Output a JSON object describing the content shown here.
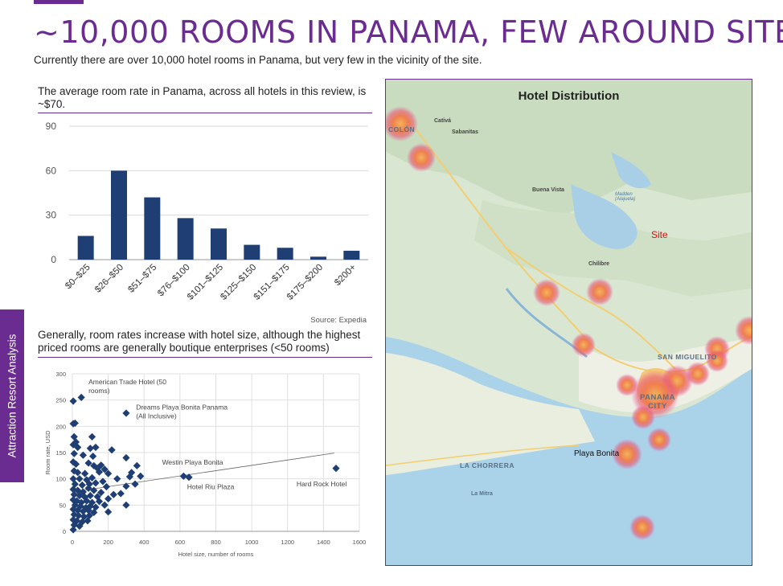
{
  "header": {
    "title": "~10,000 ROOMS IN PANAMA, FEW AROUND SITE",
    "subtitle": "Currently there are over 10,000 hotel rooms in Panama, but very few in the vicinity of the site."
  },
  "side_tab": {
    "label": "Attraction Resort Analysis"
  },
  "colors": {
    "accent": "#6a2c91",
    "bar": "#1f3f74",
    "marker": "#1f3f74",
    "site": "#e01010"
  },
  "bar_panel": {
    "heading": "The average room rate in Panama, across all hotels in this review, is ~$70.",
    "source": "Source: Expedia"
  },
  "scatter_panel": {
    "heading": "Generally, room rates increase with hotel size, although the highest priced rooms are generally boutique enterprises (<50 rooms)"
  },
  "map": {
    "title": "Hotel Distribution",
    "site_label": "Site",
    "places": {
      "colon": "COLÓN",
      "cativa": "Cativá",
      "sabanitas": "Sabanitas",
      "buena_vista": "Buena Vista",
      "madden": "Madden (Alajuela)",
      "chilibre": "Chilibre",
      "san_miguelito": "SAN MIGUELITO",
      "panama_city": "PANAMA CITY",
      "la_chorrera": "LA CHORRERA",
      "la_mitra": "La Mitra",
      "playa_bonita": "Playa Bonita"
    }
  },
  "chart_data": [
    {
      "type": "bar",
      "title": "",
      "categories": [
        "$0–$25",
        "$26–$50",
        "$51–$75",
        "$76–$100",
        "$101–$125",
        "$125–$150",
        "$151–$175",
        "$175–$200",
        "$200+"
      ],
      "values": [
        16,
        60,
        42,
        28,
        21,
        10,
        8,
        2,
        6
      ],
      "ylim": [
        0,
        90
      ],
      "yticks": [
        0,
        30,
        60,
        90
      ],
      "xlabel": "",
      "ylabel": "",
      "grid": true
    },
    {
      "type": "scatter",
      "xlabel": "Hotel size, number of rooms",
      "ylabel": "Room rate, USD",
      "xlim": [
        0,
        1600
      ],
      "ylim": [
        0,
        300
      ],
      "xticks": [
        0,
        200,
        400,
        600,
        800,
        1000,
        1200,
        1400,
        1600
      ],
      "yticks": [
        0,
        50,
        100,
        150,
        200,
        250,
        300
      ],
      "grid": true,
      "trendline": {
        "x": [
          0,
          1460
        ],
        "y": [
          75,
          149
        ]
      },
      "points": [
        {
          "x": 50,
          "y": 255
        },
        {
          "x": 5,
          "y": 248
        },
        {
          "x": 300,
          "y": 225
        },
        {
          "x": 5,
          "y": 205
        },
        {
          "x": 15,
          "y": 206
        },
        {
          "x": 10,
          "y": 180
        },
        {
          "x": 20,
          "y": 170
        },
        {
          "x": 110,
          "y": 180
        },
        {
          "x": 5,
          "y": 165
        },
        {
          "x": 30,
          "y": 160
        },
        {
          "x": 100,
          "y": 158
        },
        {
          "x": 130,
          "y": 160
        },
        {
          "x": 220,
          "y": 155
        },
        {
          "x": 10,
          "y": 148
        },
        {
          "x": 60,
          "y": 145
        },
        {
          "x": 115,
          "y": 143
        },
        {
          "x": 300,
          "y": 140
        },
        {
          "x": 5,
          "y": 132
        },
        {
          "x": 20,
          "y": 128
        },
        {
          "x": 90,
          "y": 130
        },
        {
          "x": 120,
          "y": 125
        },
        {
          "x": 160,
          "y": 126
        },
        {
          "x": 180,
          "y": 118
        },
        {
          "x": 140,
          "y": 120
        },
        {
          "x": 360,
          "y": 125
        },
        {
          "x": 10,
          "y": 115
        },
        {
          "x": 30,
          "y": 112
        },
        {
          "x": 70,
          "y": 110
        },
        {
          "x": 150,
          "y": 113
        },
        {
          "x": 200,
          "y": 110
        },
        {
          "x": 330,
          "y": 112
        },
        {
          "x": 5,
          "y": 100
        },
        {
          "x": 40,
          "y": 100
        },
        {
          "x": 80,
          "y": 98
        },
        {
          "x": 110,
          "y": 102
        },
        {
          "x": 170,
          "y": 95
        },
        {
          "x": 250,
          "y": 100
        },
        {
          "x": 320,
          "y": 104
        },
        {
          "x": 380,
          "y": 105
        },
        {
          "x": 15,
          "y": 90
        },
        {
          "x": 55,
          "y": 88
        },
        {
          "x": 95,
          "y": 90
        },
        {
          "x": 130,
          "y": 92
        },
        {
          "x": 190,
          "y": 85
        },
        {
          "x": 300,
          "y": 86
        },
        {
          "x": 350,
          "y": 90
        },
        {
          "x": 5,
          "y": 80
        },
        {
          "x": 30,
          "y": 78
        },
        {
          "x": 60,
          "y": 75
        },
        {
          "x": 90,
          "y": 82
        },
        {
          "x": 120,
          "y": 78
        },
        {
          "x": 160,
          "y": 74
        },
        {
          "x": 230,
          "y": 70
        },
        {
          "x": 270,
          "y": 72
        },
        {
          "x": 10,
          "y": 70
        },
        {
          "x": 40,
          "y": 68
        },
        {
          "x": 70,
          "y": 65
        },
        {
          "x": 100,
          "y": 68
        },
        {
          "x": 140,
          "y": 66
        },
        {
          "x": 200,
          "y": 62
        },
        {
          "x": 5,
          "y": 60
        },
        {
          "x": 25,
          "y": 58
        },
        {
          "x": 50,
          "y": 55
        },
        {
          "x": 80,
          "y": 58
        },
        {
          "x": 110,
          "y": 55
        },
        {
          "x": 150,
          "y": 57
        },
        {
          "x": 15,
          "y": 50
        },
        {
          "x": 45,
          "y": 48
        },
        {
          "x": 75,
          "y": 45
        },
        {
          "x": 100,
          "y": 48
        },
        {
          "x": 130,
          "y": 46
        },
        {
          "x": 180,
          "y": 50
        },
        {
          "x": 300,
          "y": 50
        },
        {
          "x": 5,
          "y": 42
        },
        {
          "x": 30,
          "y": 40
        },
        {
          "x": 60,
          "y": 38
        },
        {
          "x": 90,
          "y": 40
        },
        {
          "x": 120,
          "y": 36
        },
        {
          "x": 10,
          "y": 32
        },
        {
          "x": 35,
          "y": 30
        },
        {
          "x": 65,
          "y": 28
        },
        {
          "x": 95,
          "y": 30
        },
        {
          "x": 200,
          "y": 37
        },
        {
          "x": 5,
          "y": 22
        },
        {
          "x": 25,
          "y": 20
        },
        {
          "x": 55,
          "y": 18
        },
        {
          "x": 85,
          "y": 20
        },
        {
          "x": 10,
          "y": 12
        },
        {
          "x": 40,
          "y": 10
        },
        {
          "x": 5,
          "y": 3
        },
        {
          "x": 620,
          "y": 105
        },
        {
          "x": 650,
          "y": 103
        },
        {
          "x": 1470,
          "y": 120
        }
      ],
      "annotations": [
        {
          "text": "American Trade Hotel (50",
          "x": 90,
          "y": 280
        },
        {
          "text": "rooms)",
          "x": 90,
          "y": 263
        },
        {
          "text": "Dreams Playa Bonita Panama",
          "x": 355,
          "y": 232
        },
        {
          "text": "(All Inclusive)",
          "x": 355,
          "y": 215
        },
        {
          "text": "Westin Playa Bonita",
          "x": 500,
          "y": 127
        },
        {
          "text": "Hotel Riu Plaza",
          "x": 640,
          "y": 80
        },
        {
          "text": "Hard Rock Hotel",
          "x": 1250,
          "y": 86
        }
      ]
    }
  ]
}
